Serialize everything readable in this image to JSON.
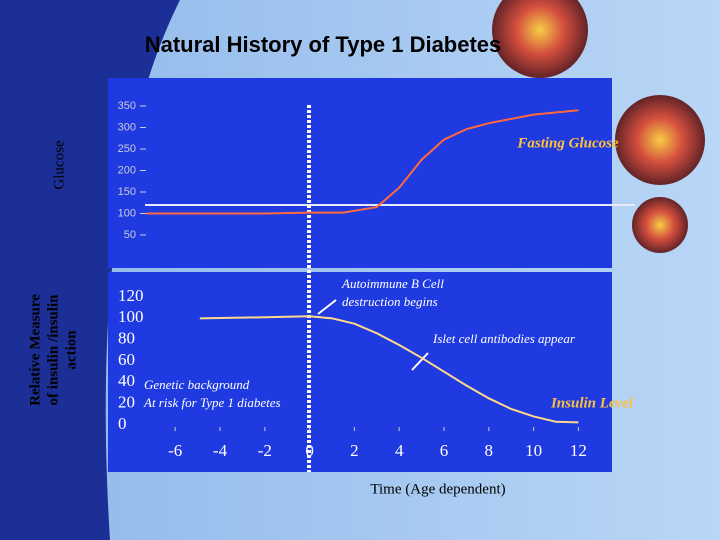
{
  "chart_data": [
    {
      "type": "line",
      "title": "Natural History of Type 1 Diabetes",
      "y_label": "Glucose",
      "x": [
        -7.3,
        -4,
        -2,
        0,
        1.5,
        3,
        4,
        5,
        6,
        7,
        8,
        10,
        12
      ],
      "series": [
        {
          "name": "Fasting Glucose",
          "color": "#ff6a3d",
          "values": [
            100,
            100,
            100,
            102,
            102,
            115,
            160,
            225,
            272,
            296,
            310,
            330,
            340
          ]
        }
      ],
      "xlim": [
        -9,
        13.5
      ],
      "ylim": [
        50,
        350
      ],
      "yticks": [
        50,
        100,
        150,
        200,
        250,
        300,
        350
      ]
    },
    {
      "type": "line",
      "y_label": [
        "Relative Measure",
        "of insulin /insulin",
        "action"
      ],
      "x_label": "Time (Age dependent)",
      "x": [
        -4.9,
        -2,
        0,
        1,
        2,
        3,
        4,
        5,
        6,
        7,
        8,
        9,
        10,
        11,
        12
      ],
      "series": [
        {
          "name": "Insulin Level",
          "color": "#ffd98a",
          "values": [
            100,
            101,
            102,
            100,
            95,
            86,
            75,
            63,
            50,
            37,
            25,
            15,
            8,
            3,
            2.5
          ]
        }
      ],
      "xlim": [
        -9,
        13.5
      ],
      "xticks": [
        -6,
        -4,
        -2,
        0,
        2,
        4,
        6,
        8,
        10,
        12
      ],
      "ylim": [
        0,
        120
      ],
      "yticks": [
        0,
        20,
        40,
        60,
        80,
        100,
        120
      ],
      "annotations": [
        [
          "Autoimmune B Cell",
          "destruction begins"
        ],
        [
          "Islet cell antibodies appear"
        ],
        [
          "Genetic background",
          "At risk for Type 1 diabetes"
        ]
      ]
    }
  ]
}
